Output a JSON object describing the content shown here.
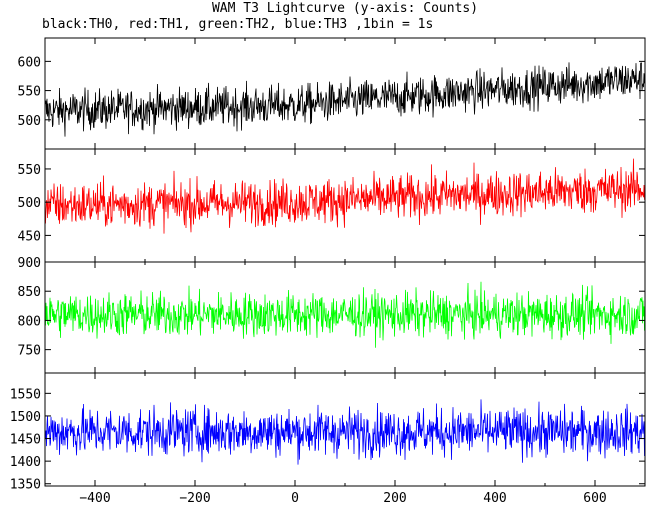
{
  "chart_data": {
    "type": "line",
    "title": "WAM T3 Lightcurve (y-axis: Counts)",
    "subtitle": "black:TH0, red:TH1, green:TH2, blue:TH3 ,1bin = 1s",
    "xlim": [
      -500,
      700
    ],
    "x_ticks": [
      -400,
      -200,
      0,
      200,
      400,
      600
    ],
    "x_tick_labels": [
      "−400",
      "−200",
      "0",
      "200",
      "400",
      "600"
    ],
    "bin_width_s": 1,
    "grid": false,
    "panels": [
      {
        "series": "TH0",
        "color": "#000000",
        "ylim": [
          450,
          640
        ],
        "y_ticks": [
          500,
          550,
          600
        ],
        "y_tick_labels": [
          "500",
          "550",
          "600"
        ],
        "level_points": [
          [
            -500,
            515
          ],
          [
            0,
            525
          ],
          [
            300,
            545
          ],
          [
            700,
            570
          ]
        ],
        "noise_halfwidth": 45
      },
      {
        "series": "TH1",
        "color": "#ff0000",
        "ylim": [
          410,
          580
        ],
        "y_ticks": [
          450,
          500,
          550
        ],
        "y_tick_labels": [
          "450",
          "500",
          "550"
        ],
        "level_points": [
          [
            -500,
            495
          ],
          [
            0,
            500
          ],
          [
            300,
            510
          ],
          [
            700,
            520
          ]
        ],
        "noise_halfwidth": 45
      },
      {
        "series": "TH2",
        "color": "#00ff00",
        "ylim": [
          710,
          900
        ],
        "y_ticks": [
          750,
          800,
          850,
          900
        ],
        "y_tick_labels": [
          "750",
          "800",
          "850",
          "900"
        ],
        "level_points": [
          [
            -500,
            810
          ],
          [
            700,
            810
          ]
        ],
        "noise_halfwidth": 50
      },
      {
        "series": "TH3",
        "color": "#0000ff",
        "ylim": [
          1345,
          1595
        ],
        "y_ticks": [
          1350,
          1400,
          1450,
          1500,
          1550
        ],
        "y_tick_labels": [
          "1350",
          "1400",
          "1450",
          "1500",
          "1550"
        ],
        "level_points": [
          [
            -500,
            1465
          ],
          [
            700,
            1465
          ]
        ],
        "noise_halfwidth": 70
      }
    ]
  }
}
